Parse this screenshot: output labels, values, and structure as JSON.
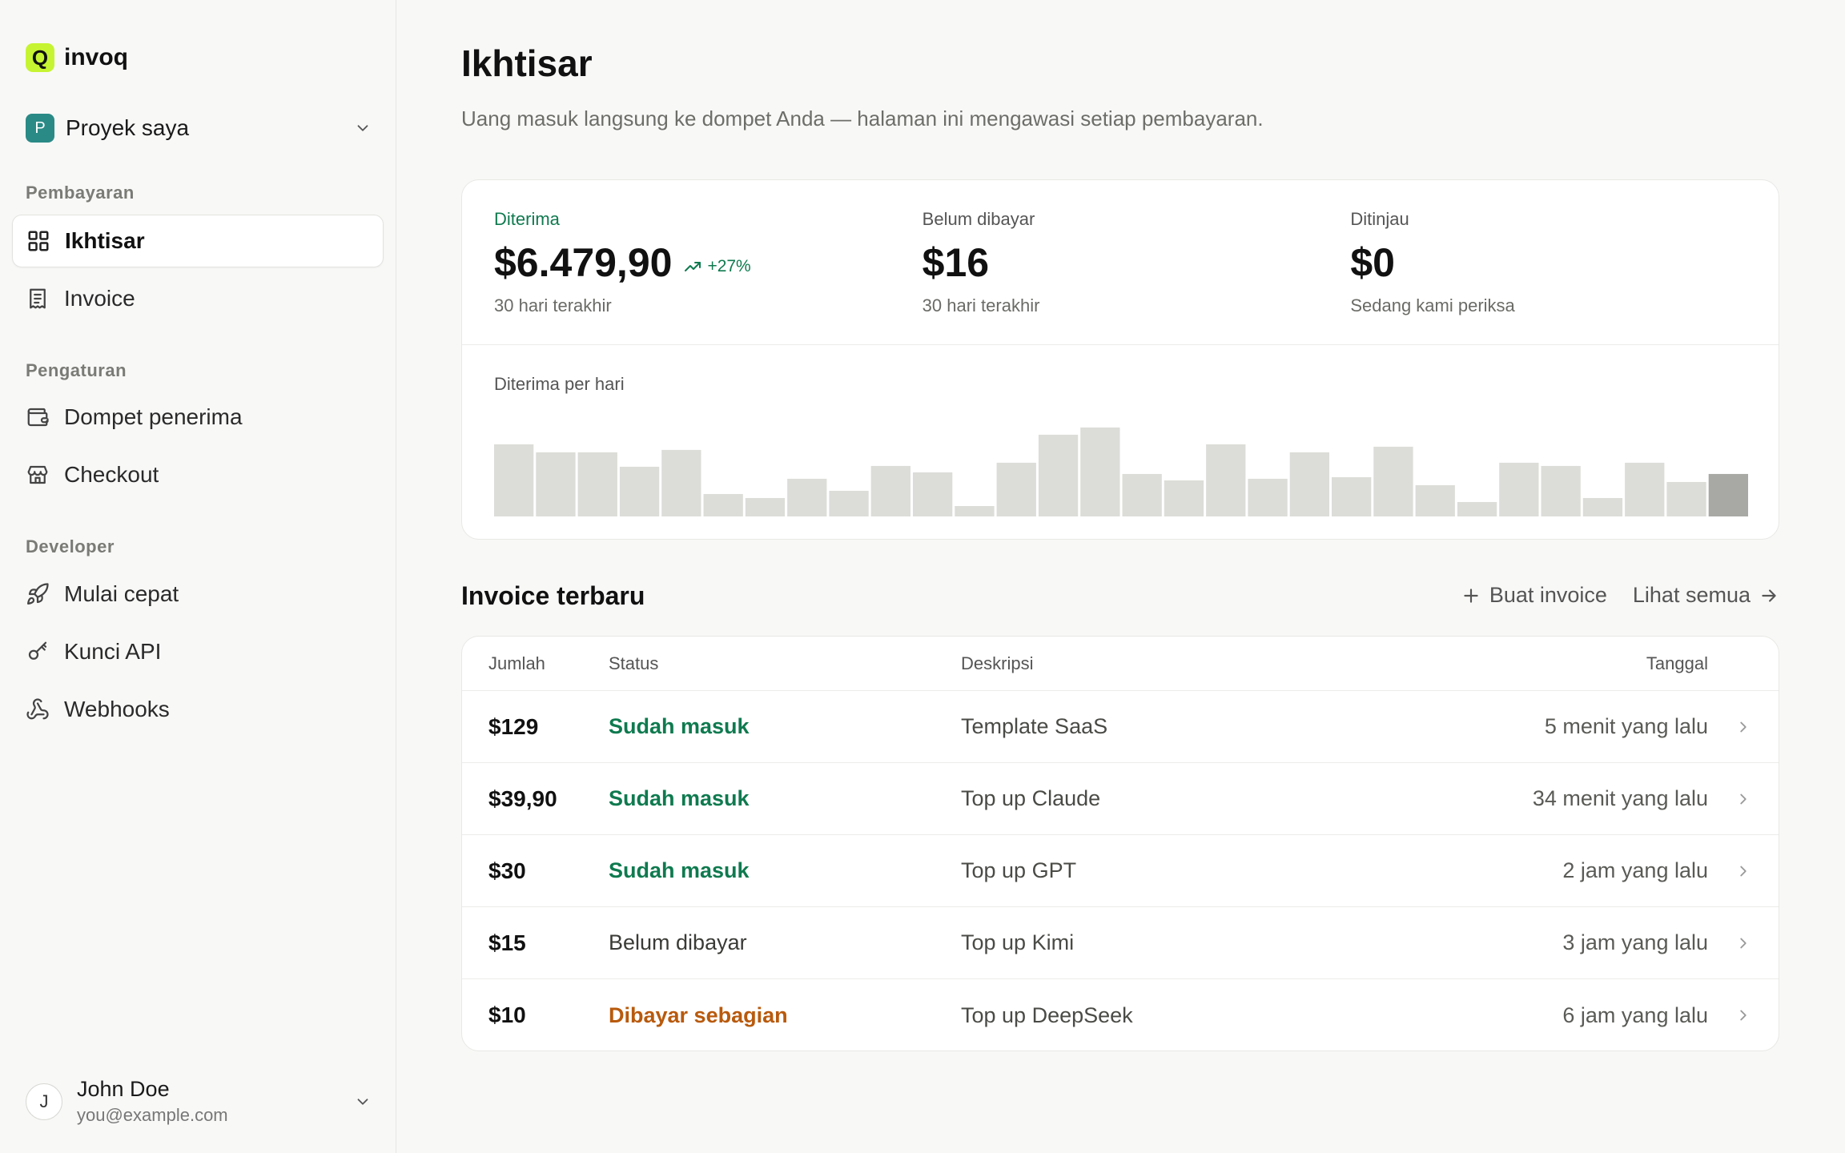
{
  "brand": {
    "logo_letter": "Q",
    "name": "invoq"
  },
  "project": {
    "badge": "P",
    "name": "Proyek saya"
  },
  "nav": {
    "sections": {
      "payments": "Pembayaran",
      "settings": "Pengaturan",
      "developer": "Developer"
    },
    "items": [
      {
        "label": "Ikhtisar",
        "icon": "grid-icon",
        "active": true
      },
      {
        "label": "Invoice",
        "icon": "receipt-icon"
      },
      {
        "label": "Dompet penerima",
        "icon": "wallet-icon"
      },
      {
        "label": "Checkout",
        "icon": "store-icon"
      },
      {
        "label": "Mulai cepat",
        "icon": "rocket-icon"
      },
      {
        "label": "Kunci API",
        "icon": "key-icon"
      },
      {
        "label": "Webhooks",
        "icon": "webhook-icon"
      }
    ]
  },
  "user": {
    "initial": "J",
    "name": "John Doe",
    "email": "you@example.com"
  },
  "page": {
    "title": "Ikhtisar",
    "subtitle": "Uang masuk langsung ke dompet Anda — halaman ini mengawasi setiap pembayaran."
  },
  "stats": {
    "received": {
      "label": "Diterima",
      "value": "$6.479,90",
      "delta": "+27%",
      "note": "30 hari terakhir"
    },
    "unpaid": {
      "label": "Belum dibayar",
      "value": "$16",
      "note": "30 hari terakhir"
    },
    "review": {
      "label": "Ditinjau",
      "value": "$0",
      "note": "Sedang kami periksa"
    }
  },
  "chart_data": {
    "type": "bar",
    "title": "Diterima per hari",
    "values": [
      90,
      80,
      80,
      62,
      83,
      28,
      23,
      47,
      32,
      63,
      55,
      13,
      67,
      102,
      111,
      53,
      45,
      90,
      47,
      80,
      49,
      87,
      39,
      18,
      67,
      63,
      23,
      67,
      43,
      53
    ],
    "highlight_last": true,
    "colors": {
      "bar": "#dcdcd8",
      "last": "#a8a8a4"
    }
  },
  "invoices": {
    "title": "Invoice terbaru",
    "create_label": "Buat invoice",
    "view_all_label": "Lihat semua",
    "columns": {
      "amount": "Jumlah",
      "status": "Status",
      "description": "Deskripsi",
      "date": "Tanggal"
    },
    "rows": [
      {
        "amount": "$129",
        "status": "Sudah masuk",
        "status_kind": "paid",
        "description": "Template SaaS",
        "date": "5 menit yang lalu"
      },
      {
        "amount": "$39,90",
        "status": "Sudah masuk",
        "status_kind": "paid",
        "description": "Top up Claude",
        "date": "34 menit yang lalu"
      },
      {
        "amount": "$30",
        "status": "Sudah masuk",
        "status_kind": "paid",
        "description": "Top up GPT",
        "date": "2 jam yang lalu"
      },
      {
        "amount": "$15",
        "status": "Belum dibayar",
        "status_kind": "unpaid",
        "description": "Top up Kimi",
        "date": "3 jam yang lalu"
      },
      {
        "amount": "$10",
        "status": "Dibayar sebagian",
        "status_kind": "partial",
        "description": "Top up DeepSeek",
        "date": "6 jam yang lalu"
      }
    ]
  }
}
